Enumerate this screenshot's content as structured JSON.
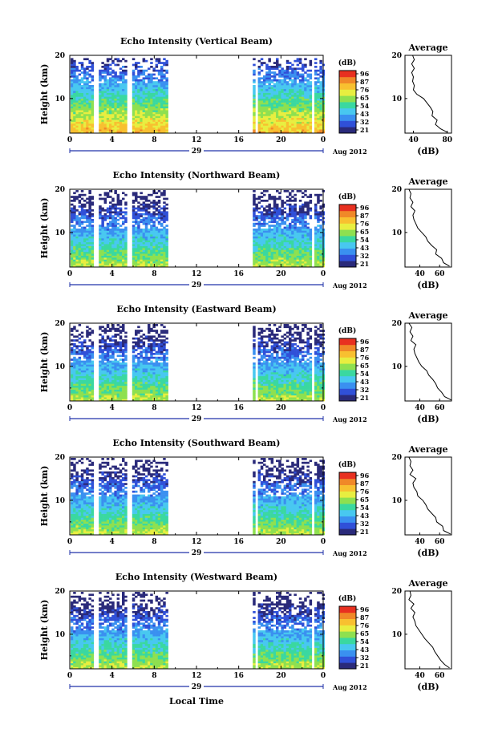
{
  "figure": {
    "time_axis_label": "Local Time",
    "date_number": "29",
    "date_suffix": "Aug 2012",
    "y_axis_label": "Height (km)",
    "colorbar_unit": "(dB)",
    "colorbar_ticks": [
      "96",
      "87",
      "76",
      "65",
      "54",
      "43",
      "32",
      "21"
    ],
    "average_title": "Average",
    "average_xlabel": "(dB)",
    "colormap": [
      "#2a2a7a",
      "#3050d8",
      "#3a90f0",
      "#48c8f0",
      "#3ad8a0",
      "#8ee050",
      "#e8ee40",
      "#f8c030",
      "#f08828",
      "#e83020"
    ]
  },
  "chart_data": [
    {
      "type": "heatmap",
      "title": "Echo Intensity (Vertical Beam)",
      "x_ticks": [
        "0",
        "4",
        "8",
        "12",
        "16",
        "20",
        "0"
      ],
      "y_ticks": [
        "20",
        "10"
      ],
      "xlim": [
        0,
        24
      ],
      "ylim": [
        2,
        20
      ],
      "data_gaps_hours": [
        [
          2.2,
          2.55
        ],
        [
          5.4,
          5.8
        ],
        [
          9.2,
          17.1
        ],
        [
          17.5,
          17.75
        ],
        [
          22.9,
          23.1
        ]
      ],
      "color_range_db": [
        21,
        96
      ],
      "average_profile": {
        "x_ticks": [
          "40",
          "80"
        ],
        "y_ticks": [
          "20",
          "10"
        ],
        "xlim": [
          30,
          85
        ],
        "height_km": [
          2.2,
          3,
          4,
          5,
          6,
          7,
          8,
          9,
          10,
          11,
          12,
          13,
          14,
          15,
          16,
          17,
          18,
          19,
          20
        ],
        "value_db": [
          80,
          72,
          66,
          68,
          62,
          63,
          60,
          56,
          52,
          44,
          40,
          41,
          39,
          40,
          38,
          41,
          38,
          41,
          39
        ]
      }
    },
    {
      "type": "heatmap",
      "title": "Echo Intensity (Northward Beam)",
      "x_ticks": [
        "0",
        "4",
        "8",
        "12",
        "16",
        "20",
        "0"
      ],
      "y_ticks": [
        "20",
        "10"
      ],
      "xlim": [
        0,
        24
      ],
      "ylim": [
        2,
        20
      ],
      "data_gaps_hours": [
        [
          2.2,
          2.55
        ],
        [
          5.4,
          5.8
        ],
        [
          9.2,
          17.1
        ],
        [
          22.9,
          23.1
        ]
      ],
      "color_range_db": [
        21,
        96
      ],
      "average_profile": {
        "x_ticks": [
          "40",
          "60"
        ],
        "y_ticks": [
          "20",
          "10"
        ],
        "xlim": [
          25,
          72
        ],
        "height_km": [
          2.2,
          3,
          4,
          5,
          6,
          7,
          8,
          9,
          10,
          11,
          12,
          13,
          14,
          15,
          16,
          17,
          18,
          19,
          20
        ],
        "value_db": [
          70,
          64,
          62,
          56,
          57,
          52,
          48,
          46,
          42,
          38,
          36,
          34,
          33,
          35,
          31,
          33,
          30,
          31,
          29
        ]
      }
    },
    {
      "type": "heatmap",
      "title": "Echo Intensity (Eastward Beam)",
      "x_ticks": [
        "0",
        "4",
        "8",
        "12",
        "16",
        "20",
        "0"
      ],
      "y_ticks": [
        "20",
        "10"
      ],
      "xlim": [
        0,
        24
      ],
      "ylim": [
        2,
        20
      ],
      "data_gaps_hours": [
        [
          2.2,
          2.55
        ],
        [
          5.4,
          5.8
        ],
        [
          9.2,
          17.1
        ],
        [
          17.5,
          17.75
        ],
        [
          22.9,
          23.1
        ]
      ],
      "color_range_db": [
        21,
        96
      ],
      "average_profile": {
        "x_ticks": [
          "40",
          "60"
        ],
        "y_ticks": [
          "20",
          "10"
        ],
        "xlim": [
          25,
          72
        ],
        "height_km": [
          2.2,
          3,
          4,
          5,
          6,
          7,
          8,
          9,
          10,
          11,
          12,
          13,
          14,
          15,
          16,
          17,
          18,
          19,
          20
        ],
        "value_db": [
          72,
          65,
          62,
          58,
          56,
          53,
          49,
          47,
          42,
          39,
          37,
          35,
          34,
          36,
          31,
          33,
          30,
          32,
          29
        ]
      }
    },
    {
      "type": "heatmap",
      "title": "Echo Intensity (Southward Beam)",
      "x_ticks": [
        "0",
        "4",
        "8",
        "12",
        "16",
        "20",
        "0"
      ],
      "y_ticks": [
        "20",
        "10"
      ],
      "xlim": [
        0,
        24
      ],
      "ylim": [
        2,
        20
      ],
      "data_gaps_hours": [
        [
          2.2,
          2.55
        ],
        [
          5.4,
          5.8
        ],
        [
          9.2,
          17.1
        ],
        [
          17.5,
          17.75
        ],
        [
          22.9,
          23.1
        ]
      ],
      "color_range_db": [
        21,
        96
      ],
      "average_profile": {
        "x_ticks": [
          "40",
          "60"
        ],
        "y_ticks": [
          "20",
          "10"
        ],
        "xlim": [
          25,
          72
        ],
        "height_km": [
          2.2,
          3,
          4,
          5,
          6,
          7,
          8,
          9,
          10,
          11,
          12,
          13,
          14,
          15,
          16,
          17,
          18,
          19,
          20
        ],
        "value_db": [
          71,
          64,
          63,
          57,
          56,
          52,
          48,
          46,
          43,
          38,
          37,
          34,
          33,
          36,
          30,
          33,
          30,
          31,
          29
        ]
      }
    },
    {
      "type": "heatmap",
      "title": "Echo Intensity (Westward Beam)",
      "x_ticks": [
        "0",
        "4",
        "8",
        "12",
        "16",
        "20",
        "0"
      ],
      "y_ticks": [
        "20",
        "10"
      ],
      "xlim": [
        0,
        24
      ],
      "ylim": [
        2,
        20
      ],
      "data_gaps_hours": [
        [
          2.2,
          2.55
        ],
        [
          5.4,
          5.8
        ],
        [
          9.2,
          17.1
        ],
        [
          17.5,
          17.75
        ],
        [
          22.9,
          23.1
        ]
      ],
      "color_range_db": [
        21,
        96
      ],
      "average_profile": {
        "x_ticks": [
          "40",
          "60"
        ],
        "y_ticks": [
          "20",
          "10"
        ],
        "xlim": [
          25,
          72
        ],
        "height_km": [
          2.2,
          3,
          4,
          5,
          6,
          7,
          8,
          9,
          10,
          11,
          12,
          13,
          14,
          15,
          16,
          17,
          18,
          19,
          20
        ],
        "value_db": [
          70,
          65,
          61,
          58,
          55,
          53,
          49,
          45,
          42,
          39,
          36,
          35,
          33,
          35,
          31,
          34,
          29,
          31,
          30
        ]
      }
    }
  ]
}
